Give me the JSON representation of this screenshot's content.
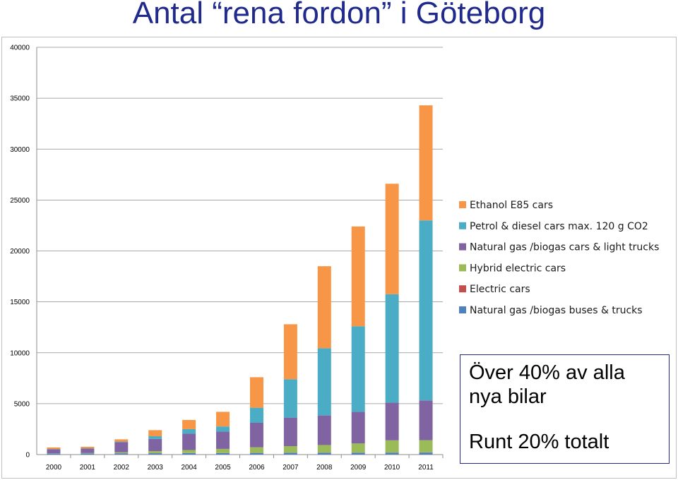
{
  "title": "Antal “rena fordon” i Göteborg",
  "callout": {
    "line1": "Över 40% av alla",
    "line2": "nya bilar",
    "line3": "Runt 20% totalt"
  },
  "chart_data": {
    "type": "bar",
    "stacked": true,
    "categories": [
      "2000",
      "2001",
      "2002",
      "2003",
      "2004",
      "2005",
      "2006",
      "2007",
      "2008",
      "2009",
      "2010",
      "2011"
    ],
    "ylim": [
      0,
      40000
    ],
    "yticks": [
      0,
      5000,
      10000,
      15000,
      20000,
      25000,
      30000,
      35000,
      40000
    ],
    "grid": true,
    "legend_position": "right",
    "series": [
      {
        "name": "Natural gas /biogas buses & trucks",
        "color": "#4f81bd",
        "values": [
          100,
          100,
          120,
          130,
          140,
          150,
          160,
          170,
          180,
          180,
          190,
          200
        ]
      },
      {
        "name": "Electric cars",
        "color": "#c0504d",
        "values": [
          10,
          10,
          10,
          10,
          10,
          10,
          10,
          10,
          10,
          10,
          10,
          20
        ]
      },
      {
        "name": "Hybrid electric cars",
        "color": "#9bbb59",
        "values": [
          20,
          40,
          100,
          200,
          300,
          400,
          550,
          650,
          750,
          900,
          1200,
          1200
        ]
      },
      {
        "name": "Natural gas /biogas cars & light trucks",
        "color": "#8064a2",
        "values": [
          400,
          450,
          1000,
          1200,
          1600,
          1700,
          2400,
          2800,
          2900,
          3100,
          3700,
          3900
        ]
      },
      {
        "name": "Petrol & diesel cars max. 120 g CO2",
        "color": "#4bacc6",
        "values": [
          20,
          20,
          50,
          260,
          450,
          500,
          1480,
          3770,
          6610,
          8410,
          10650,
          17680
        ]
      },
      {
        "name": "Ethanol E85 cars",
        "color": "#f79646",
        "values": [
          150,
          150,
          220,
          600,
          900,
          1440,
          3000,
          5400,
          8050,
          9800,
          10850,
          11300
        ]
      }
    ],
    "legend_order": [
      "Ethanol E85 cars",
      "Petrol & diesel cars max. 120 g CO2",
      "Natural gas /biogas cars & light trucks",
      "Hybrid electric cars",
      "Electric cars",
      "Natural gas /biogas buses & trucks"
    ]
  }
}
